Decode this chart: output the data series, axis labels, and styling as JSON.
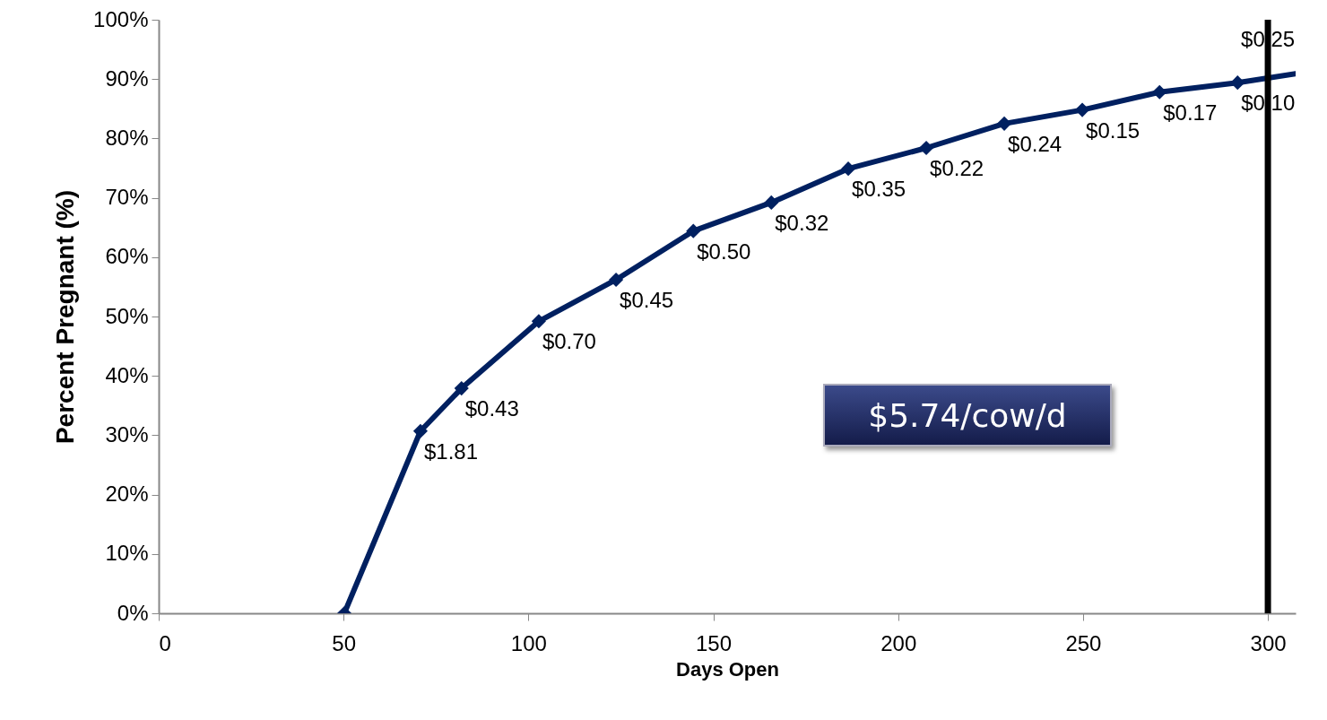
{
  "chart_data": {
    "type": "line",
    "xlabel": "Days Open",
    "ylabel": "Percent Pregnant (%)",
    "x": [
      50.2,
      70.8,
      81.9,
      102.8,
      123.7,
      144.6,
      165.7,
      186.5,
      207.6,
      228.7,
      249.8,
      270.7,
      291.8,
      307.5
    ],
    "series": [
      {
        "color": "#002060",
        "values": [
          0,
          30.7,
          37.9,
          49.2,
          56.2,
          64.4,
          69.2,
          74.9,
          78.4,
          82.5,
          84.8,
          87.8,
          89.4,
          90.9
        ]
      }
    ],
    "xlim": [
      0,
      307.5
    ],
    "xticks": [
      0,
      50,
      100,
      150,
      200,
      250,
      300
    ],
    "ylim": [
      0,
      100
    ],
    "yticks": [
      {
        "value": 0,
        "label": "0%"
      },
      {
        "value": 10,
        "label": "10%"
      },
      {
        "value": 20,
        "label": "20%"
      },
      {
        "value": 30,
        "label": "30%"
      },
      {
        "value": 40,
        "label": "40%"
      },
      {
        "value": 50,
        "label": "50%"
      },
      {
        "value": 60,
        "label": "60%"
      },
      {
        "value": 70,
        "label": "70%"
      },
      {
        "value": 80,
        "label": "80%"
      },
      {
        "value": 90,
        "label": "90%"
      },
      {
        "value": 100,
        "label": "100%"
      }
    ],
    "ref_lines": [
      {
        "axis": "x",
        "value": 300,
        "color": "#000000"
      }
    ],
    "annotations": [
      "$5.74/cow/d",
      {
        "text": "$1.81",
        "x": 70.8,
        "y": 30.7
      },
      {
        "text": "$0.43",
        "x": 81.9,
        "y": 37.9
      },
      {
        "text": "$0.70",
        "x": 102.8,
        "y": 49.2
      },
      {
        "text": "$0.45",
        "x": 123.7,
        "y": 56.2
      },
      {
        "text": "$0.50",
        "x": 144.6,
        "y": 64.4
      },
      {
        "text": "$0.32",
        "x": 165.7,
        "y": 69.2
      },
      {
        "text": "$0.35",
        "x": 186.5,
        "y": 74.9
      },
      {
        "text": "$0.22",
        "x": 207.6,
        "y": 78.4
      },
      {
        "text": "$0.24",
        "x": 228.7,
        "y": 82.5
      },
      {
        "text": "$0.15",
        "x": 249.8,
        "y": 84.8
      },
      {
        "text": "$0.17",
        "x": 270.7,
        "y": 87.8
      },
      {
        "text": "$0.10",
        "x": 291.8,
        "y": 89.4
      },
      {
        "text": "$0.25",
        "x": 300,
        "y": 96.5
      }
    ],
    "marker": "diamond",
    "line_style": "solid",
    "grid": false
  }
}
